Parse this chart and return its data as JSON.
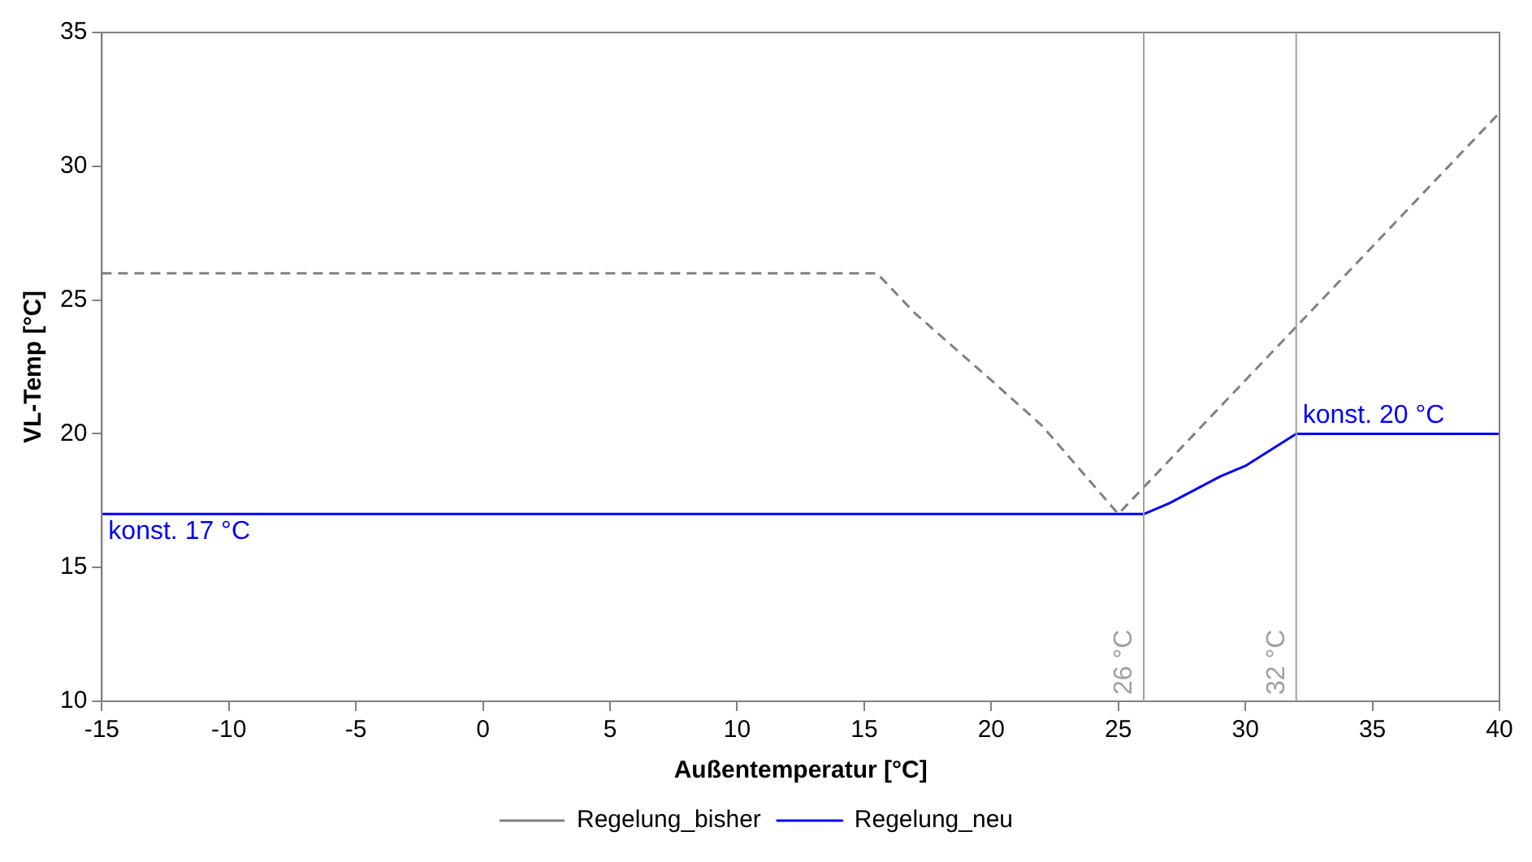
{
  "chart_data": {
    "type": "line",
    "xlabel": "Außentemperatur [°C]",
    "ylabel": "VL-Temp [°C]",
    "xlim": [
      -15,
      40
    ],
    "xticks": [
      -15,
      -10,
      -5,
      0,
      5,
      10,
      15,
      20,
      25,
      30,
      35,
      40
    ],
    "ylim": [
      10,
      35
    ],
    "yticks": [
      10,
      15,
      20,
      25,
      30,
      35
    ],
    "grid": false,
    "legend": "bottom",
    "marker": "none",
    "series": [
      {
        "name": "Regelung_bisher",
        "color": "#808080",
        "line_style": "dashed",
        "x": [
          -15,
          15.5,
          17,
          20,
          22,
          25,
          26,
          28,
          30,
          32,
          35,
          40
        ],
        "values": [
          26,
          26,
          24.5,
          22,
          20.3,
          17,
          18,
          20,
          22,
          24,
          27,
          32
        ]
      },
      {
        "name": "Regelung_neu",
        "color": "#0000ff",
        "line_style": "solid",
        "x": [
          -15,
          26,
          27,
          28,
          29,
          30,
          31,
          32,
          40
        ],
        "values": [
          17,
          17,
          17.4,
          17.9,
          18.4,
          18.8,
          19.4,
          20,
          20
        ]
      }
    ],
    "ref_lines": [
      {
        "axis": "x",
        "value": 26,
        "label": "26 °C",
        "color": "#a0a0a0"
      },
      {
        "axis": "x",
        "value": 32,
        "label": "32 °C",
        "color": "#a0a0a0"
      }
    ],
    "annotations": [
      {
        "text": "konst. 17 °C",
        "x": -15,
        "y": 17
      },
      {
        "text": "konst. 20 °C",
        "x": 32,
        "y": 20
      }
    ]
  }
}
